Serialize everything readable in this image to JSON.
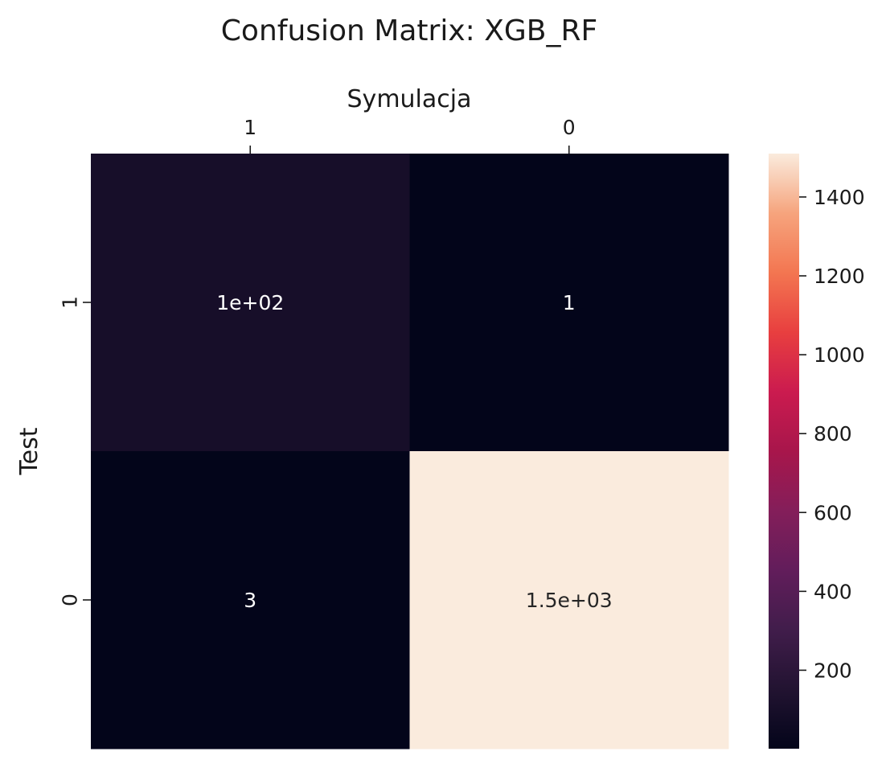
{
  "chart_data": {
    "type": "heatmap",
    "title": "Confusion Matrix: XGB_RF",
    "xlabel": "Symulacja",
    "ylabel": "Test",
    "x_categories": [
      "1",
      "0"
    ],
    "y_categories": [
      "1",
      "0"
    ],
    "values": [
      [
        100,
        1
      ],
      [
        3,
        1510
      ]
    ],
    "annotations": [
      [
        "1e+02",
        "1"
      ],
      [
        "3",
        "1.5e+03"
      ]
    ],
    "x_axis_position": "top",
    "colormap": "rocket",
    "colorbar": {
      "range": [
        1,
        1510
      ],
      "ticks": [
        200,
        400,
        600,
        800,
        1000,
        1200,
        1400
      ],
      "tick_labels": [
        "200",
        "400",
        "600",
        "800",
        "1000",
        "1200",
        "1400"
      ]
    }
  }
}
